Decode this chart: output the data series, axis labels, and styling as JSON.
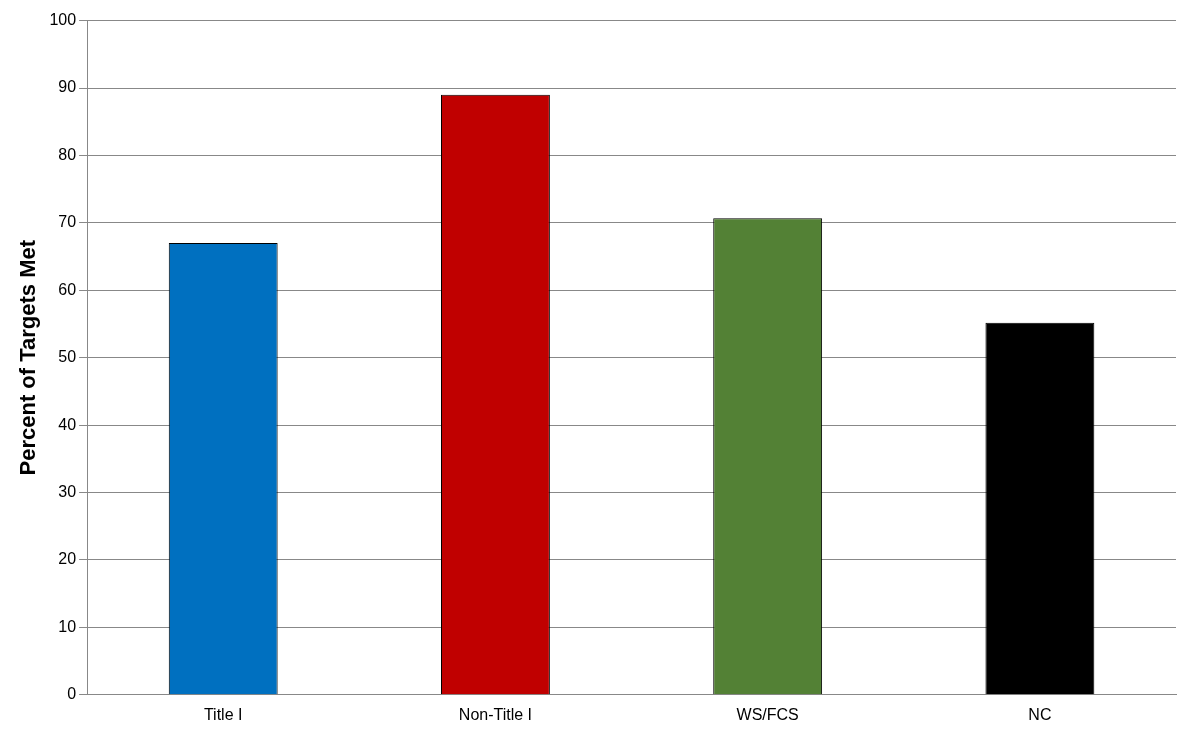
{
  "chart_data": {
    "type": "bar",
    "ylabel": "Percent of Targets Met",
    "categories": [
      "Title I",
      "Non-Title I",
      "WS/FCS",
      "NC"
    ],
    "values": [
      67,
      89,
      70.7,
      55.2
    ],
    "colors": [
      "#0070c0",
      "#c00000",
      "#538135",
      "#000000"
    ],
    "ylim": [
      0,
      100
    ],
    "yticks": [
      0,
      10,
      20,
      30,
      40,
      50,
      60,
      70,
      80,
      90,
      100
    ],
    "grid": "y",
    "legend": false
  }
}
